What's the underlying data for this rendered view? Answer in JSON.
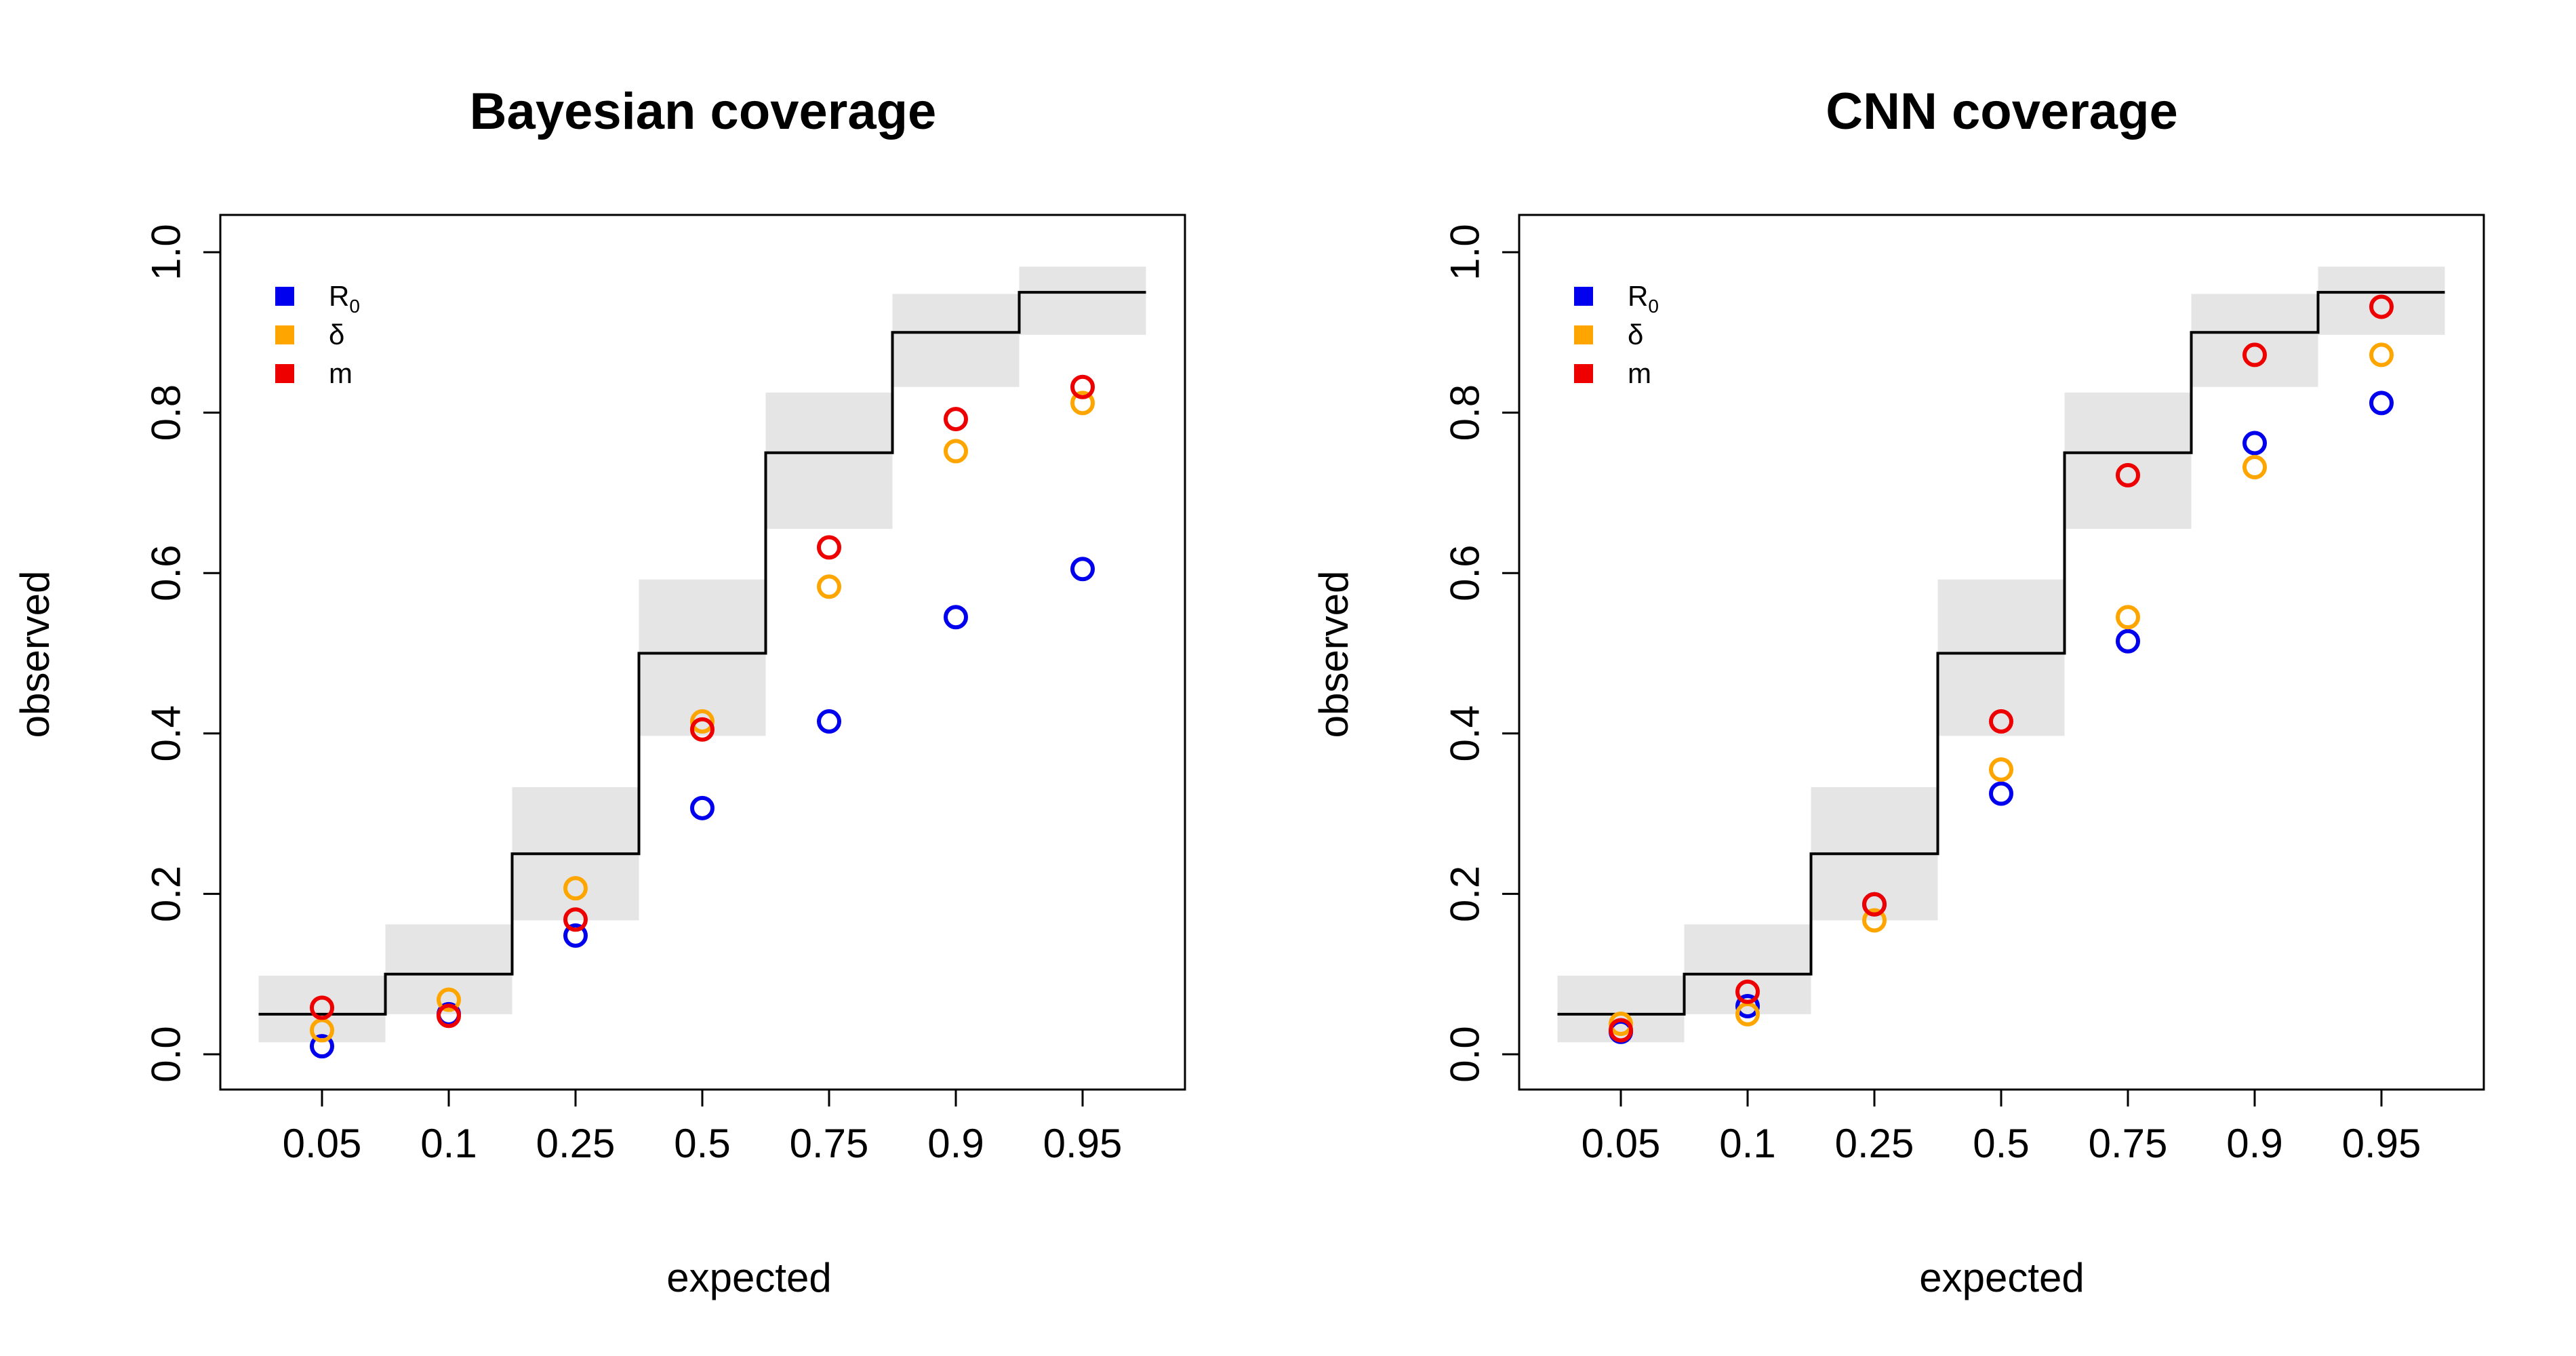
{
  "chart_data": [
    {
      "type": "scatter",
      "title": "Bayesian coverage",
      "xlabel": "expected",
      "ylabel": "observed",
      "categories": [
        "0.05",
        "0.1",
        "0.25",
        "0.5",
        "0.75",
        "0.9",
        "0.95"
      ],
      "expected": [
        0.05,
        0.1,
        0.25,
        0.5,
        0.75,
        0.9,
        0.95
      ],
      "band_lower": [
        0.015,
        0.05,
        0.167,
        0.397,
        0.655,
        0.832,
        0.897
      ],
      "band_upper": [
        0.098,
        0.162,
        0.333,
        0.592,
        0.825,
        0.948,
        0.982
      ],
      "ylim": [
        0.0,
        1.0
      ],
      "y_ticks": [
        "0.0",
        "0.2",
        "0.4",
        "0.6",
        "0.8",
        "1.0"
      ],
      "grid": false,
      "legend_position": "top-left",
      "series": [
        {
          "name": "R",
          "subscript": "0",
          "color": "#0000ee",
          "values": [
            0.01,
            0.05,
            0.148,
            0.307,
            0.415,
            0.545,
            0.605
          ]
        },
        {
          "name": "δ",
          "color": "#ffa500",
          "values": [
            0.03,
            0.068,
            0.207,
            0.415,
            0.583,
            0.752,
            0.812
          ]
        },
        {
          "name": "m",
          "color": "#ee0000",
          "values": [
            0.058,
            0.048,
            0.168,
            0.405,
            0.632,
            0.792,
            0.832
          ]
        }
      ]
    },
    {
      "type": "scatter",
      "title": "CNN coverage",
      "xlabel": "expected",
      "ylabel": "observed",
      "categories": [
        "0.05",
        "0.1",
        "0.25",
        "0.5",
        "0.75",
        "0.9",
        "0.95"
      ],
      "expected": [
        0.05,
        0.1,
        0.25,
        0.5,
        0.75,
        0.9,
        0.95
      ],
      "band_lower": [
        0.015,
        0.05,
        0.167,
        0.397,
        0.655,
        0.832,
        0.897
      ],
      "band_upper": [
        0.098,
        0.162,
        0.333,
        0.592,
        0.825,
        0.948,
        0.982
      ],
      "ylim": [
        0.0,
        1.0
      ],
      "y_ticks": [
        "0.0",
        "0.2",
        "0.4",
        "0.6",
        "0.8",
        "1.0"
      ],
      "grid": false,
      "legend_position": "top-left",
      "series": [
        {
          "name": "R",
          "subscript": "0",
          "color": "#0000ee",
          "values": [
            0.028,
            0.06,
            0.187,
            0.325,
            0.515,
            0.762,
            0.812
          ]
        },
        {
          "name": "δ",
          "color": "#ffa500",
          "values": [
            0.038,
            0.05,
            0.167,
            0.355,
            0.545,
            0.732,
            0.872
          ]
        },
        {
          "name": "m",
          "color": "#ee0000",
          "values": [
            0.03,
            0.078,
            0.187,
            0.415,
            0.722,
            0.872,
            0.932
          ]
        }
      ]
    }
  ],
  "colors": {
    "band_fill": "#e5e5e5",
    "step_line": "#000000",
    "axis": "#000000"
  }
}
